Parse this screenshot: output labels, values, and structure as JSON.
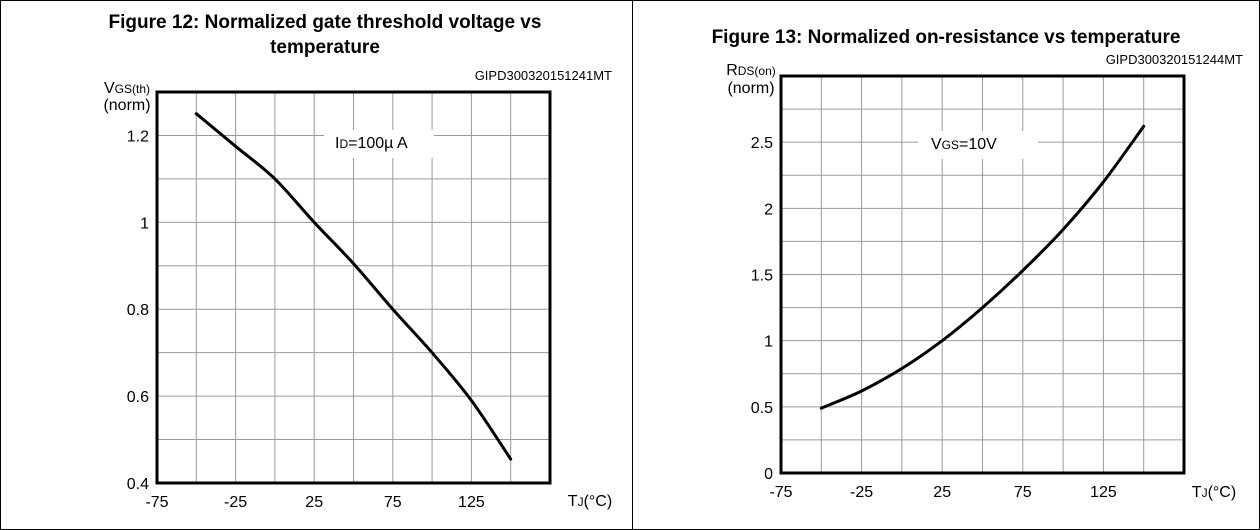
{
  "chart_data": [
    {
      "id": "fig12",
      "type": "line",
      "title_lines": [
        "Figure 12: Normalized gate threshold voltage vs",
        "temperature"
      ],
      "code": "GIPD300320151241MT",
      "ylabel_main": "V",
      "ylabel_sub": "GS(th)",
      "ylabel_unit": "(norm)",
      "xlabel_main": "T",
      "xlabel_sub": "J",
      "xlabel_unit": "(°C)",
      "annotation_main": "I",
      "annotation_sub": "D",
      "annotation_rest": "=100µ A",
      "xlim": [
        -75,
        175
      ],
      "ylim": [
        0.4,
        1.3
      ],
      "xticks": [
        -75,
        -25,
        25,
        75,
        125
      ],
      "xtick_labels": [
        "-75",
        "-25",
        "25",
        "75",
        "125"
      ],
      "yticks": [
        0.4,
        0.6,
        0.8,
        1.0,
        1.2
      ],
      "ytick_labels": [
        "0.4",
        "0.6",
        "0.8",
        "1",
        "1.2"
      ],
      "grid": true,
      "series": [
        {
          "x": [
            -50,
            -25,
            0,
            25,
            50,
            75,
            100,
            125,
            150
          ],
          "y": [
            1.25,
            1.175,
            1.1,
            1.0,
            0.905,
            0.8,
            0.7,
            0.59,
            0.455
          ]
        }
      ]
    },
    {
      "id": "fig13",
      "type": "line",
      "title_lines": [
        "Figure 13: Normalized on-resistance vs temperature"
      ],
      "code": "GIPD300320151244MT",
      "ylabel_main": "R",
      "ylabel_sub": "DS(on)",
      "ylabel_unit": "(norm)",
      "xlabel_main": "T",
      "xlabel_sub": "J",
      "xlabel_unit": "(°C)",
      "annotation_main": "V",
      "annotation_sub": "GS",
      "annotation_rest": "=10V",
      "xlim": [
        -75,
        175
      ],
      "ylim": [
        0,
        3.0
      ],
      "xticks": [
        -75,
        -25,
        25,
        75,
        125
      ],
      "xtick_labels": [
        "-75",
        "-25",
        "25",
        "75",
        "125"
      ],
      "yticks": [
        0,
        0.5,
        1,
        1.5,
        2,
        2.5
      ],
      "ytick_labels": [
        "0",
        "0.5",
        "1",
        "1.5",
        "2",
        "2.5"
      ],
      "grid": true,
      "series": [
        {
          "x": [
            -50,
            -25,
            0,
            25,
            50,
            75,
            100,
            125,
            150
          ],
          "y": [
            0.49,
            0.62,
            0.79,
            1.0,
            1.25,
            1.53,
            1.84,
            2.2,
            2.62
          ]
        }
      ]
    }
  ]
}
